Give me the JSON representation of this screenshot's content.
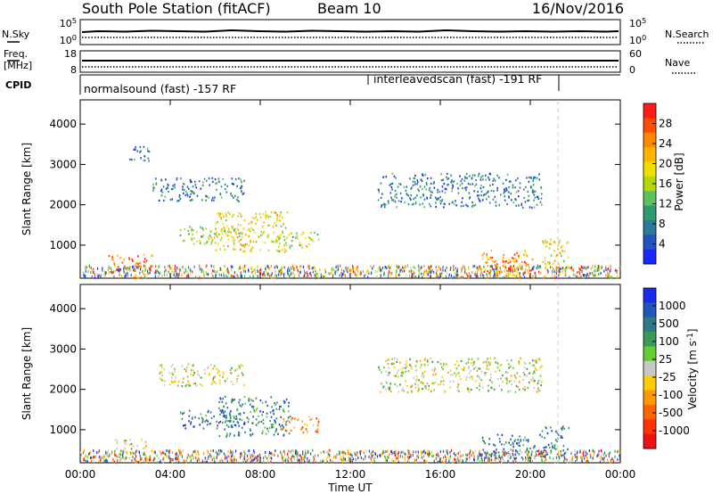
{
  "header": {
    "station": "South Pole Station (fitACF)",
    "beam": "Beam 10",
    "date": "16/Nov/2016"
  },
  "top_strip": {
    "left_label": "N.Sky",
    "left_ticks": [
      "10^5",
      "10^0"
    ],
    "right_label": "N.Search",
    "right_ticks": [
      "10^5",
      "10^0"
    ]
  },
  "freq_strip": {
    "left_label_1": "Freq.",
    "left_label_2": "[MHz]",
    "left_ticks": [
      "18",
      "8"
    ],
    "right_label": "Nave",
    "right_ticks": [
      "60",
      "0"
    ]
  },
  "cpid": {
    "label": "CPID",
    "segments": [
      {
        "text": "normalsound (fast) -157 RF"
      },
      {
        "text": "interleavedscan (fast) -191 RF"
      }
    ]
  },
  "colorbar_power": {
    "label": "Power [dB]",
    "ticks": [
      "28",
      "24",
      "20",
      "16",
      "12",
      "8",
      "4"
    ],
    "colors": [
      "#ff1a1a",
      "#ff4d00",
      "#ff8a00",
      "#ffb400",
      "#f0e000",
      "#b5d900",
      "#5cc25c",
      "#2e9a6e",
      "#2a7a9a",
      "#2255bb",
      "#1a2aff"
    ]
  },
  "colorbar_velocity": {
    "label": "Velocity [m s^-1]",
    "ticks": [
      "1000",
      "500",
      "100",
      "25",
      "-25",
      "-100",
      "-500",
      "-1000"
    ],
    "colors": [
      "#1a2aee",
      "#2255bb",
      "#2e7a8a",
      "#3a9a5a",
      "#66cc33",
      "#c8c8c8",
      "#ffcc00",
      "#ff9900",
      "#ff6600",
      "#ff3300",
      "#ee1111"
    ]
  },
  "x_axis": {
    "label": "Time UT",
    "ticks": [
      "00:00",
      "04:00",
      "08:00",
      "12:00",
      "16:00",
      "20:00",
      "00:00"
    ]
  },
  "chart_data": [
    {
      "type": "heatmap",
      "title": "",
      "xlabel": "",
      "ylabel": "Slant Range [km]",
      "xlim": [
        0,
        24
      ],
      "ylim": [
        180,
        4600
      ],
      "y_ticks": [
        1000,
        2000,
        3000,
        4000
      ],
      "colorbar": "Power [dB]",
      "regions": [
        {
          "t0": 1.2,
          "t1": 3.3,
          "r0": 350,
          "r1": 800,
          "level": 8
        },
        {
          "t0": 2.1,
          "t1": 3.1,
          "r0": 3100,
          "r1": 3500,
          "level": 2
        },
        {
          "t0": 3.2,
          "t1": 7.3,
          "r0": 2100,
          "r1": 2700,
          "level": 2
        },
        {
          "t0": 4.4,
          "t1": 7.1,
          "r0": 1050,
          "r1": 1500,
          "level": 5
        },
        {
          "t0": 6.0,
          "t1": 9.2,
          "r0": 850,
          "r1": 1850,
          "level": 6
        },
        {
          "t0": 8.8,
          "t1": 10.6,
          "r0": 950,
          "r1": 1350,
          "level": 5
        },
        {
          "t0": 13.2,
          "t1": 20.5,
          "r0": 1950,
          "r1": 2800,
          "level": 2
        },
        {
          "t0": 17.8,
          "t1": 20.1,
          "r0": 250,
          "r1": 900,
          "level": 8
        },
        {
          "t0": 20.5,
          "t1": 21.7,
          "r0": 350,
          "r1": 1200,
          "level": 6
        }
      ]
    },
    {
      "type": "heatmap",
      "title": "",
      "xlabel": "Time UT",
      "ylabel": "Slant Range [km]",
      "xlim": [
        0,
        24
      ],
      "ylim": [
        180,
        4600
      ],
      "y_ticks": [
        1000,
        2000,
        3000,
        4000
      ],
      "colorbar": "Velocity [m s^-1]",
      "regions": [
        {
          "t0": 1.5,
          "t1": 3.0,
          "r0": 300,
          "r1": 780,
          "level": 5
        },
        {
          "t0": 3.5,
          "t1": 7.3,
          "r0": 2100,
          "r1": 2650,
          "level": 5
        },
        {
          "t0": 4.4,
          "t1": 7.0,
          "r0": 1050,
          "r1": 1500,
          "level": 8
        },
        {
          "t0": 6.0,
          "t1": 9.3,
          "r0": 850,
          "r1": 1850,
          "level": 8
        },
        {
          "t0": 8.8,
          "t1": 10.6,
          "r0": 950,
          "r1": 1350,
          "level": 3
        },
        {
          "t0": 13.2,
          "t1": 20.5,
          "r0": 1950,
          "r1": 2800,
          "level": 5
        },
        {
          "t0": 17.8,
          "t1": 20.3,
          "r0": 300,
          "r1": 900,
          "level": 8
        },
        {
          "t0": 20.4,
          "t1": 21.7,
          "r0": 350,
          "r1": 1100,
          "level": 8
        }
      ]
    }
  ]
}
